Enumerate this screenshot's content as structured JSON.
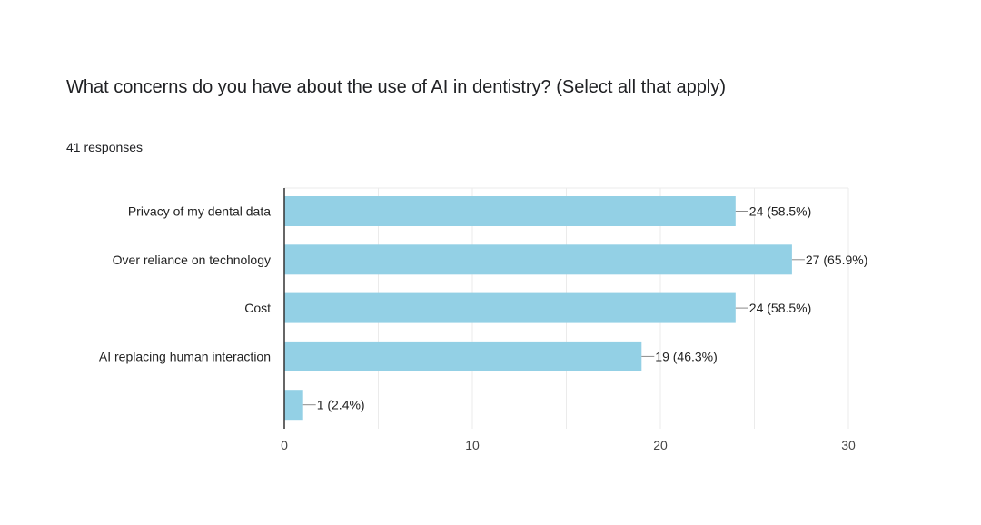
{
  "question": {
    "title": "What concerns do you have about the use of AI in dentistry? (Select all that apply)",
    "responses": "41 responses"
  },
  "colors": {
    "bar": "#93d0e5",
    "grid": "#ebebeb",
    "axis": "#333333",
    "leader": "#8a8a8a"
  },
  "chart_data": {
    "type": "bar",
    "orientation": "horizontal",
    "title": "",
    "xlabel": "",
    "ylabel": "",
    "categories": [
      "Privacy of my dental data",
      "Over reliance on technology",
      "Cost",
      "AI replacing human interaction",
      ""
    ],
    "values": [
      24,
      27,
      24,
      19,
      1
    ],
    "data_labels": [
      "24 (58.5%)",
      "27 (65.9%)",
      "24 (58.5%)",
      "19 (46.3%)",
      "1 (2.4%)"
    ],
    "xlim": [
      0,
      30
    ],
    "xticks": [
      0,
      10,
      20,
      30
    ],
    "grid": true,
    "legend": "none"
  }
}
